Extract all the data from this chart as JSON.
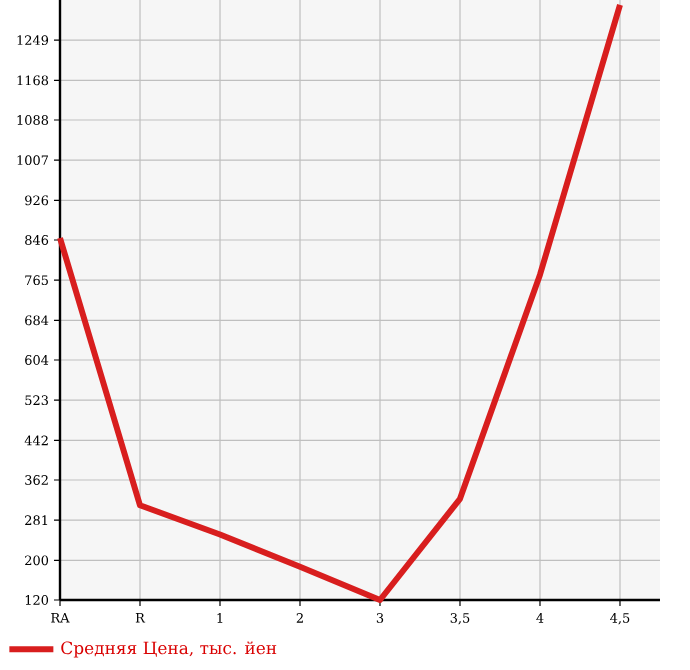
{
  "chart_data": {
    "type": "line",
    "categories": [
      "RA",
      "R",
      "1",
      "2",
      "3",
      "3,5",
      "4",
      "4,5"
    ],
    "series": [
      {
        "name": "Средняя Цена, тыс. йен",
        "color": "#d81e1e",
        "values": [
          850,
          311,
          252,
          187,
          120,
          324,
          776,
          1320
        ]
      }
    ],
    "ylim": [
      120,
      1330
    ],
    "yticks": [
      120,
      200,
      281,
      362,
      442,
      523,
      604,
      684,
      765,
      846,
      926,
      1007,
      1088,
      1168,
      1249
    ],
    "grid": true,
    "legend": "bottom left",
    "marker": "none",
    "line_style": "solid"
  }
}
